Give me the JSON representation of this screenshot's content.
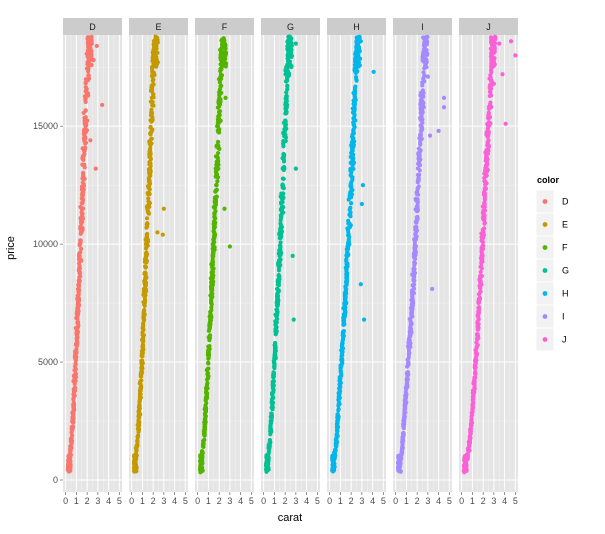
{
  "chart_data": {
    "type": "scatter",
    "xlabel": "carat",
    "ylabel": "price",
    "xlim": [
      0,
      5
    ],
    "ylim": [
      0,
      19500
    ],
    "x_ticks": [
      0,
      1,
      2,
      3,
      4,
      5
    ],
    "y_ticks": [
      0,
      5000,
      10000,
      15000
    ],
    "y_tick_labels": [
      "0",
      "5000",
      "10000",
      "15000"
    ],
    "grid": true,
    "facet_by": "color",
    "legend": {
      "title": "color",
      "placement": "right",
      "entries": [
        {
          "label": "D",
          "color": "#F8766D"
        },
        {
          "label": "E",
          "color": "#C49A00"
        },
        {
          "label": "F",
          "color": "#53B400"
        },
        {
          "label": "G",
          "color": "#00C094"
        },
        {
          "label": "H",
          "color": "#00B6EB"
        },
        {
          "label": "I",
          "color": "#A58AFF"
        },
        {
          "label": "J",
          "color": "#FB61D7"
        }
      ]
    },
    "panels": [
      {
        "label": "D",
        "color": "#F8766D",
        "trend": [
          [
            0.25,
            400
          ],
          [
            0.6,
            1900
          ],
          [
            1.0,
            5600
          ],
          [
            1.3,
            9000
          ],
          [
            1.6,
            12500
          ],
          [
            2.0,
            17000
          ],
          [
            2.2,
            18700
          ]
        ],
        "outliers": [
          [
            3.4,
            15900
          ],
          [
            2.8,
            13200
          ],
          [
            2.6,
            17800
          ],
          [
            2.9,
            18400
          ],
          [
            2.3,
            14400
          ]
        ]
      },
      {
        "label": "E",
        "color": "#C49A00",
        "trend": [
          [
            0.25,
            400
          ],
          [
            0.6,
            1900
          ],
          [
            1.0,
            5400
          ],
          [
            1.3,
            8700
          ],
          [
            1.6,
            12300
          ],
          [
            2.0,
            17200
          ],
          [
            2.2,
            18700
          ]
        ],
        "outliers": [
          [
            3.0,
            11500
          ],
          [
            2.4,
            10500
          ],
          [
            2.9,
            10400
          ],
          [
            2.1,
            18400
          ]
        ]
      },
      {
        "label": "F",
        "color": "#53B400",
        "trend": [
          [
            0.25,
            400
          ],
          [
            0.6,
            1800
          ],
          [
            1.0,
            5100
          ],
          [
            1.4,
            8900
          ],
          [
            1.8,
            13200
          ],
          [
            2.2,
            17800
          ],
          [
            2.4,
            18700
          ]
        ],
        "outliers": [
          [
            3.0,
            9900
          ],
          [
            2.6,
            16200
          ],
          [
            2.5,
            11500
          ]
        ]
      },
      {
        "label": "G",
        "color": "#00C094",
        "trend": [
          [
            0.25,
            400
          ],
          [
            0.6,
            1700
          ],
          [
            1.0,
            4900
          ],
          [
            1.4,
            8500
          ],
          [
            1.8,
            12600
          ],
          [
            2.2,
            17300
          ],
          [
            2.5,
            18700
          ]
        ],
        "outliers": [
          [
            3.0,
            13200
          ],
          [
            2.8,
            6800
          ],
          [
            3.0,
            18500
          ],
          [
            2.7,
            9500
          ]
        ]
      },
      {
        "label": "H",
        "color": "#00B6EB",
        "trend": [
          [
            0.25,
            400
          ],
          [
            0.6,
            1500
          ],
          [
            1.0,
            4300
          ],
          [
            1.5,
            8000
          ],
          [
            2.0,
            12500
          ],
          [
            2.4,
            17000
          ],
          [
            2.6,
            18700
          ]
        ],
        "outliers": [
          [
            4.1,
            17300
          ],
          [
            3.1,
            12500
          ],
          [
            3.0,
            11700
          ],
          [
            2.9,
            8300
          ],
          [
            3.2,
            6800
          ],
          [
            2.9,
            18600
          ]
        ]
      },
      {
        "label": "I",
        "color": "#A58AFF",
        "trend": [
          [
            0.25,
            400
          ],
          [
            0.6,
            1300
          ],
          [
            1.0,
            3900
          ],
          [
            1.5,
            7200
          ],
          [
            2.0,
            11500
          ],
          [
            2.5,
            16500
          ],
          [
            2.8,
            18700
          ]
        ],
        "outliers": [
          [
            4.5,
            16200
          ],
          [
            4.5,
            15800
          ],
          [
            4.0,
            14800
          ],
          [
            3.4,
            8100
          ],
          [
            3.2,
            14600
          ],
          [
            3.0,
            17100
          ]
        ]
      },
      {
        "label": "J",
        "color": "#FB61D7",
        "trend": [
          [
            0.25,
            400
          ],
          [
            0.7,
            1400
          ],
          [
            1.2,
            4200
          ],
          [
            1.7,
            8000
          ],
          [
            2.2,
            12500
          ],
          [
            2.7,
            16800
          ],
          [
            3.0,
            18700
          ]
        ],
        "outliers": [
          [
            5.0,
            18000
          ],
          [
            4.6,
            18600
          ],
          [
            4.1,
            15100
          ],
          [
            3.8,
            17200
          ],
          [
            3.0,
            16800
          ],
          [
            3.5,
            18500
          ]
        ]
      }
    ]
  }
}
